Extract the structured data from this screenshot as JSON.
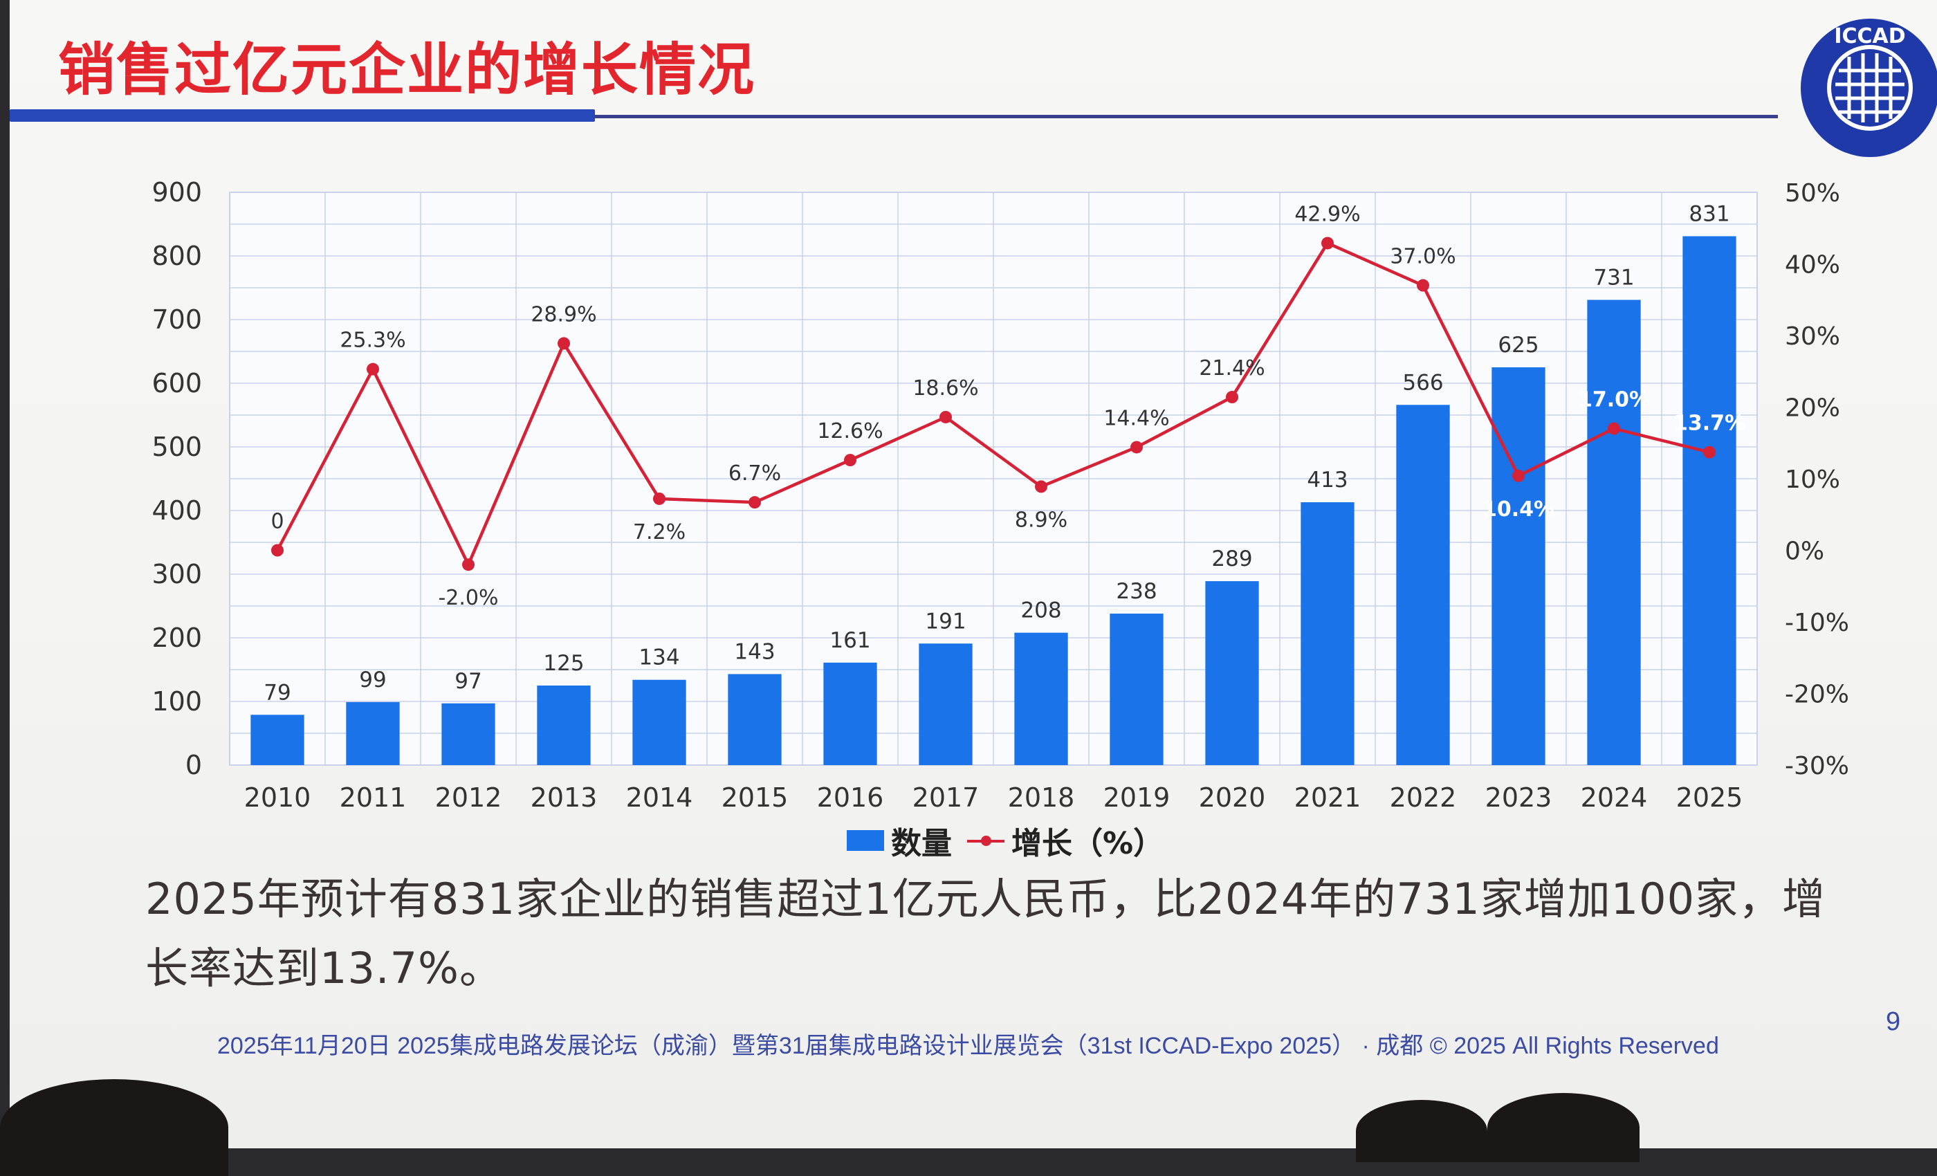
{
  "slide": {
    "title": "销售过亿元企业的增长情况",
    "summary": "2025年预计有831家企业的销售超过1亿元人民币，比2024年的731家增加100家，增长率达到13.7%。",
    "footer": "2025年11月20日 2025集成电路发展论坛（成渝）暨第31届集成电路设计业展览会（31st ICCAD-Expo 2025） · 成都 © 2025 All Rights Reserved",
    "page_number": "9",
    "logo_text": "ICCAD"
  },
  "colors": {
    "title": "#e3262e",
    "bar": "#1a73e8",
    "line": "#d62236",
    "accent_rule": "#2748b8",
    "grid": "#c9d2ea"
  },
  "legend": {
    "bar_label": "数量",
    "line_label": "增长（%）"
  },
  "chart_data": {
    "type": "bar",
    "categories": [
      "2010",
      "2011",
      "2012",
      "2013",
      "2014",
      "2015",
      "2016",
      "2017",
      "2018",
      "2019",
      "2020",
      "2021",
      "2022",
      "2023",
      "2024",
      "2025"
    ],
    "series": [
      {
        "name": "数量",
        "type": "bar",
        "axis": "left",
        "values": [
          79,
          99,
          97,
          125,
          134,
          143,
          161,
          191,
          208,
          238,
          289,
          413,
          566,
          625,
          731,
          831
        ],
        "labels": [
          "79",
          "99",
          "97",
          "125",
          "134",
          "143",
          "161",
          "191",
          "208",
          "238",
          "289",
          "413",
          "566",
          "625",
          "731",
          "831"
        ]
      },
      {
        "name": "增长（%）",
        "type": "line",
        "axis": "right",
        "values": [
          0,
          25.3,
          -2.0,
          28.9,
          7.2,
          6.7,
          12.6,
          18.6,
          8.9,
          14.4,
          21.4,
          42.9,
          37.0,
          10.4,
          17.0,
          13.7
        ],
        "labels": [
          "0",
          "25.3%",
          "-2.0%",
          "28.9%",
          "7.2%",
          "6.7%",
          "12.6%",
          "18.6%",
          "8.9%",
          "14.4%",
          "21.4%",
          "42.9%",
          "37.0%",
          "10.4%",
          "17.0%",
          "13.7%"
        ]
      }
    ],
    "ylim": [
      0,
      900
    ],
    "y_ticks": [
      "0",
      "100",
      "200",
      "300",
      "400",
      "500",
      "600",
      "700",
      "800",
      "900"
    ],
    "y2lim": [
      -30,
      50
    ],
    "y2_ticks": [
      "-30%",
      "-20%",
      "-10%",
      "0%",
      "10%",
      "20%",
      "30%",
      "40%",
      "50%"
    ],
    "grid": true,
    "legend_position": "bottom"
  }
}
